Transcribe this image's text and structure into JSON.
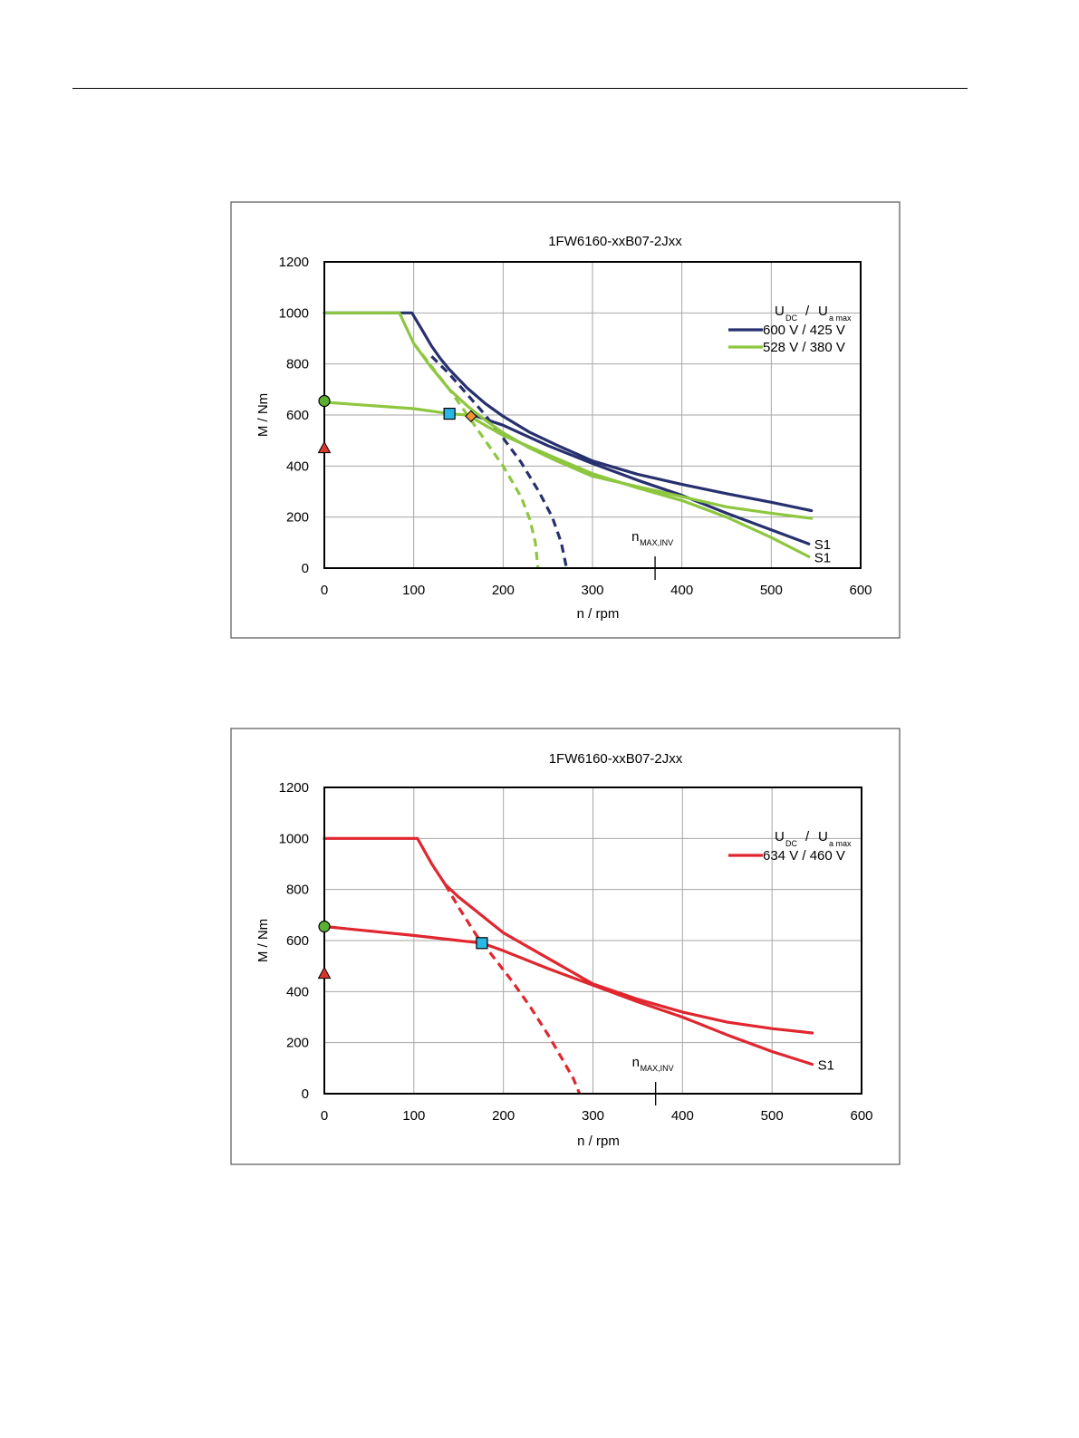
{
  "colors": {
    "navy": "#27306e",
    "green": "#8dc63f",
    "red": "#e0262e",
    "marker_cyan": "#2bb7e6",
    "marker_orange": "#f29431",
    "marker_green": "#5bb033",
    "marker_red": "#d8382c"
  },
  "chart_data": [
    {
      "type": "line",
      "title": "1FW6160-xxB07-2Jxx",
      "xlabel": "n / rpm",
      "ylabel": "M / Nm",
      "xlim": [
        0,
        600
      ],
      "ylim": [
        0,
        1200
      ],
      "xticks": [
        "0",
        "100",
        "200",
        "300",
        "400",
        "500",
        "600"
      ],
      "yticks": [
        "0",
        "200",
        "400",
        "600",
        "800",
        "1000",
        "1200"
      ],
      "grid": true,
      "legend_title": {
        "u": "U",
        "dc": "DC",
        "slash": "/",
        "u2": "U",
        "amax": "a max"
      },
      "legend_position": "top-right",
      "annotation": {
        "n": "n",
        "sub": "MAX,INV",
        "x": 370
      },
      "series": [
        {
          "name": "600 V / 425 V",
          "color": "navy",
          "style": "solid",
          "role": "peak",
          "x": [
            0,
            98,
            110,
            120,
            130,
            140,
            160,
            180,
            200,
            230,
            260,
            300,
            350,
            400,
            450,
            500,
            545
          ],
          "y": [
            1000,
            1000,
            930,
            870,
            820,
            778,
            705,
            645,
            595,
            532,
            482,
            420,
            368,
            328,
            292,
            258,
            225
          ]
        },
        {
          "name": "",
          "color": "navy",
          "style": "solid",
          "role": "S1",
          "label": "S1",
          "x": [
            166,
            200,
            250,
            300,
            350,
            400,
            450,
            500,
            542
          ],
          "y": [
            600,
            560,
            480,
            410,
            345,
            285,
            215,
            150,
            95
          ]
        },
        {
          "name": "",
          "color": "navy",
          "style": "dashed",
          "role": "voltage-limit",
          "x": [
            120,
            140,
            160,
            180,
            200,
            220,
            240,
            255,
            265,
            271
          ],
          "y": [
            830,
            760,
            680,
            600,
            510,
            415,
            300,
            200,
            100,
            0
          ]
        },
        {
          "name": "528 V / 380 V",
          "color": "green",
          "style": "solid",
          "role": "peak",
          "x": [
            0,
            84,
            100,
            120,
            140,
            160,
            180,
            200,
            230,
            260,
            300,
            350,
            400,
            450,
            500,
            545
          ],
          "y": [
            1000,
            1000,
            880,
            785,
            700,
            635,
            580,
            530,
            470,
            420,
            360,
            320,
            280,
            240,
            215,
            195
          ]
        },
        {
          "name": "",
          "color": "green",
          "style": "solid",
          "role": "S1",
          "label": "S1",
          "x": [
            0,
            100,
            140,
            160,
            180,
            200,
            250,
            300,
            350,
            400,
            450,
            500,
            542
          ],
          "y": [
            650,
            625,
            605,
            600,
            560,
            520,
            445,
            370,
            315,
            265,
            200,
            120,
            45
          ]
        },
        {
          "name": "",
          "color": "green",
          "style": "dashed",
          "role": "voltage-limit",
          "x": [
            100,
            120,
            140,
            160,
            180,
            200,
            220,
            230,
            236,
            239
          ],
          "y": [
            880,
            790,
            700,
            600,
            500,
            400,
            280,
            190,
            100,
            0
          ]
        }
      ],
      "markers": [
        {
          "shape": "circle",
          "color": "marker_green",
          "x": 0,
          "y": 655
        },
        {
          "shape": "triangle",
          "color": "marker_red",
          "x": 0,
          "y": 470
        },
        {
          "shape": "square",
          "color": "marker_cyan",
          "x": 140,
          "y": 605
        },
        {
          "shape": "diamond",
          "color": "marker_orange",
          "x": 164,
          "y": 595
        }
      ]
    },
    {
      "type": "line",
      "title": "1FW6160-xxB07-2Jxx",
      "xlabel": "n / rpm",
      "ylabel": "M / Nm",
      "xlim": [
        0,
        600
      ],
      "ylim": [
        0,
        1200
      ],
      "xticks": [
        "0",
        "100",
        "200",
        "300",
        "400",
        "500",
        "600"
      ],
      "yticks": [
        "0",
        "200",
        "400",
        "600",
        "800",
        "1000",
        "1200"
      ],
      "grid": true,
      "legend_title": {
        "u": "U",
        "dc": "DC",
        "slash": "/",
        "u2": "U",
        "amax": "a max"
      },
      "legend_position": "top-right",
      "annotation": {
        "n": "n",
        "sub": "MAX,INV",
        "x": 370
      },
      "series": [
        {
          "name": "634 V / 460 V",
          "color": "red",
          "style": "solid",
          "role": "peak",
          "x": [
            0,
            104,
            120,
            135,
            150,
            175,
            200,
            250,
            300,
            350,
            400,
            450,
            500,
            545
          ],
          "y": [
            1000,
            1000,
            900,
            820,
            770,
            700,
            630,
            530,
            430,
            370,
            320,
            280,
            255,
            238
          ]
        },
        {
          "name": "",
          "color": "red",
          "style": "solid",
          "role": "S1",
          "label": "S1",
          "x": [
            0,
            100,
            150,
            176,
            200,
            250,
            300,
            350,
            400,
            450,
            500,
            545
          ],
          "y": [
            655,
            620,
            600,
            590,
            560,
            490,
            425,
            360,
            300,
            230,
            165,
            115
          ]
        },
        {
          "name": "",
          "color": "red",
          "style": "dashed",
          "role": "voltage-limit",
          "x": [
            135,
            150,
            170,
            190,
            210,
            230,
            250,
            265,
            278,
            285
          ],
          "y": [
            820,
            730,
            620,
            530,
            440,
            340,
            230,
            140,
            60,
            0
          ]
        }
      ],
      "markers": [
        {
          "shape": "circle",
          "color": "marker_green",
          "x": 0,
          "y": 655
        },
        {
          "shape": "triangle",
          "color": "marker_red",
          "x": 0,
          "y": 470
        },
        {
          "shape": "square",
          "color": "marker_cyan",
          "x": 176,
          "y": 590
        }
      ]
    }
  ]
}
